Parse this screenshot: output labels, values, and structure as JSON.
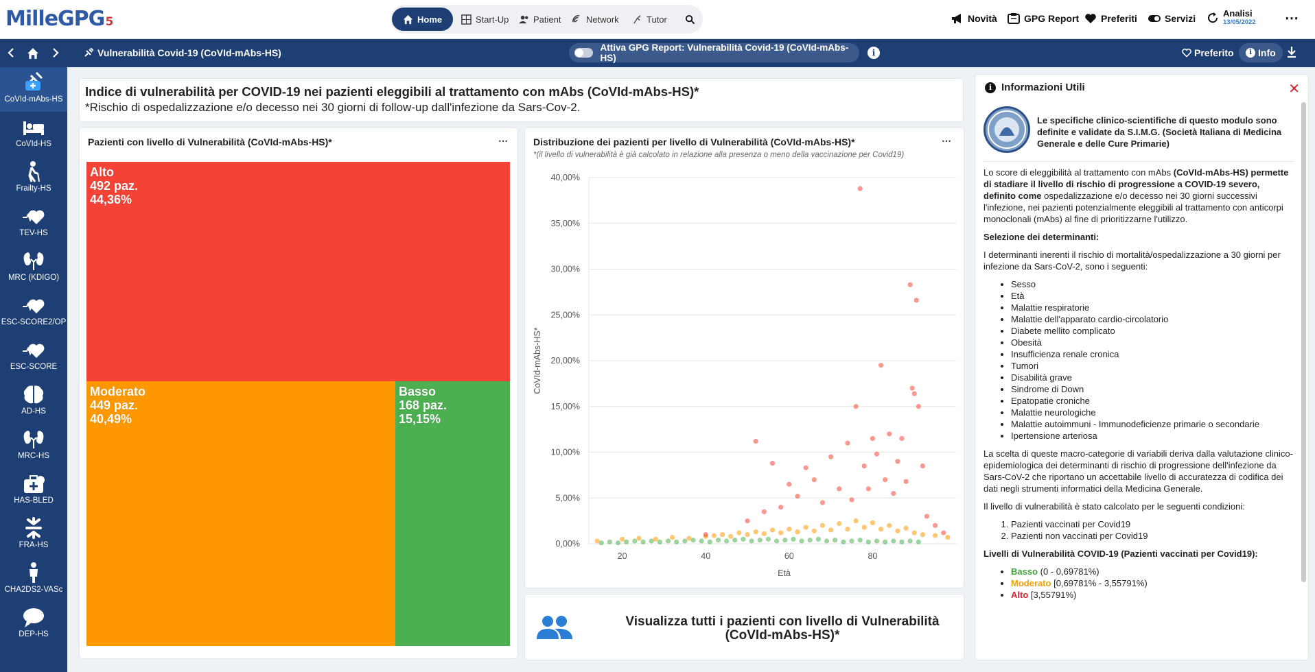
{
  "app": {
    "logo_text": "MilleGPG",
    "logo_num": "5"
  },
  "nav": {
    "items": [
      {
        "label": "Home",
        "icon": "home-icon",
        "active": true
      },
      {
        "label": "Start-Up",
        "icon": "grid-icon"
      },
      {
        "label": "Patient",
        "icon": "users-icon"
      },
      {
        "label": "Network",
        "icon": "network-icon"
      },
      {
        "label": "Tutor",
        "icon": "tutor-icon"
      }
    ]
  },
  "topright": {
    "novita": "Novità",
    "gpg_report": "GPG Report",
    "preferiti": "Preferiti",
    "servizi": "Servizi",
    "analisi": "Analisi",
    "analisi_date": "13/05/2022"
  },
  "subbar": {
    "title": "Vulnerabilità Covid-19 (CoVId-mAbs-HS)",
    "toggle_label": "Attiva GPG Report: Vulnerabilità Covid-19 (CoVId-mAbs-HS)",
    "preferito": "Preferito",
    "info": "Info"
  },
  "sidebar": [
    {
      "label": "CoVId-mAbs-HS",
      "icon": "vaccine-icon",
      "active": true
    },
    {
      "label": "CoVId-HS",
      "icon": "bed-icon"
    },
    {
      "label": "Frailty-HS",
      "icon": "elderly-icon"
    },
    {
      "label": "TEV-HS",
      "icon": "heart-pulse-icon"
    },
    {
      "label": "MRC (KDIGO)",
      "icon": "kidney-icon"
    },
    {
      "label": "ESC-SCORE2/OP",
      "icon": "heart-pulse-icon"
    },
    {
      "label": "ESC-SCORE",
      "icon": "heart-pulse-icon"
    },
    {
      "label": "AD-HS",
      "icon": "brain-icon"
    },
    {
      "label": "MRC-HS",
      "icon": "kidney-icon"
    },
    {
      "label": "HAS-BLED",
      "icon": "medical-kit-icon"
    },
    {
      "label": "FRA-HS",
      "icon": "fracture-icon"
    },
    {
      "label": "CHA2DS2-VASc",
      "icon": "person-icon"
    },
    {
      "label": "DEP-HS",
      "icon": "speech-icon"
    }
  ],
  "header": {
    "title": "Indice di vulnerabilità per COVID-19 nei pazienti eleggibili al trattamento con mAbs (CoVId-mAbs-HS)*",
    "subtitle": "*Rischio di ospedalizzazione e/o decesso nei 30 giorni di follow-up dall'infezione da Sars-Cov-2."
  },
  "treemap": {
    "title": "Pazienti con livello di Vulnerabilità (CoVId-mAbs-HS)*",
    "cells": [
      {
        "name": "Alto",
        "count": "492 paz.",
        "pct": "44,36%",
        "color": "#f44336"
      },
      {
        "name": "Moderato",
        "count": "449 paz.",
        "pct": "40,49%",
        "color": "#ff9800"
      },
      {
        "name": "Basso",
        "count": "168 paz.",
        "pct": "15,15%",
        "color": "#4caf50"
      }
    ]
  },
  "scatter": {
    "title": "Distribuzione dei pazienti per livello di Vulnerabilità (CoVId-mAbs-HS)*",
    "subtitle": "*(il livello di vulnerabilità è già calcolato in relazione alla presenza o meno della vaccinazione per Covid19)"
  },
  "chart_data": {
    "type": "scatter",
    "title": "Distribuzione dei pazienti per livello di Vulnerabilità (CoVId-mAbs-HS)*",
    "xlabel": "Età",
    "ylabel": "CoVId-mAbs-HS*",
    "xlim": [
      12,
      100
    ],
    "ylim": [
      0,
      40
    ],
    "x_ticks": [
      20,
      40,
      60,
      80
    ],
    "y_ticks": [
      "0,00%",
      "5,00%",
      "10,00%",
      "15,00%",
      "20,00%",
      "25,00%",
      "30,00%",
      "35,00%",
      "40,00%"
    ],
    "grid": true,
    "series": [
      {
        "name": "Basso",
        "color": "#4caf50",
        "points": [
          [
            15,
            0.1
          ],
          [
            17,
            0.2
          ],
          [
            19,
            0.1
          ],
          [
            21,
            0.2
          ],
          [
            23,
            0.3
          ],
          [
            25,
            0.2
          ],
          [
            27,
            0.3
          ],
          [
            29,
            0.2
          ],
          [
            31,
            0.3
          ],
          [
            33,
            0.2
          ],
          [
            35,
            0.3
          ],
          [
            37,
            0.4
          ],
          [
            39,
            0.3
          ],
          [
            41,
            0.2
          ],
          [
            43,
            0.4
          ],
          [
            45,
            0.3
          ],
          [
            47,
            0.4
          ],
          [
            49,
            0.5
          ],
          [
            51,
            0.3
          ],
          [
            53,
            0.4
          ],
          [
            55,
            0.5
          ],
          [
            57,
            0.3
          ],
          [
            59,
            0.4
          ],
          [
            61,
            0.5
          ],
          [
            63,
            0.3
          ],
          [
            65,
            0.4
          ],
          [
            67,
            0.5
          ],
          [
            69,
            0.3
          ],
          [
            71,
            0.4
          ],
          [
            73,
            0.2
          ],
          [
            75,
            0.3
          ],
          [
            77,
            0.4
          ],
          [
            79,
            0.2
          ],
          [
            81,
            0.3
          ],
          [
            83,
            0.2
          ],
          [
            85,
            0.3
          ],
          [
            87,
            0.2
          ],
          [
            89,
            0.3
          ],
          [
            91,
            0.2
          ]
        ]
      },
      {
        "name": "Moderato",
        "color": "#ff9800",
        "points": [
          [
            14,
            0.3
          ],
          [
            20,
            0.5
          ],
          [
            24,
            0.6
          ],
          [
            28,
            0.5
          ],
          [
            32,
            0.7
          ],
          [
            36,
            0.6
          ],
          [
            40,
            0.8
          ],
          [
            42,
            0.9
          ],
          [
            44,
            1.0
          ],
          [
            46,
            0.8
          ],
          [
            48,
            1.2
          ],
          [
            50,
            1.0
          ],
          [
            52,
            1.3
          ],
          [
            54,
            1.1
          ],
          [
            56,
            1.5
          ],
          [
            58,
            1.2
          ],
          [
            60,
            1.6
          ],
          [
            62,
            1.3
          ],
          [
            64,
            1.8
          ],
          [
            66,
            1.4
          ],
          [
            68,
            2.0
          ],
          [
            70,
            1.5
          ],
          [
            72,
            2.2
          ],
          [
            74,
            1.6
          ],
          [
            76,
            2.5
          ],
          [
            78,
            1.8
          ],
          [
            80,
            2.3
          ],
          [
            82,
            1.6
          ],
          [
            84,
            2.0
          ],
          [
            86,
            1.4
          ],
          [
            88,
            1.7
          ],
          [
            90,
            1.2
          ],
          [
            92,
            1.0
          ],
          [
            95,
            0.9
          ],
          [
            98,
            0.7
          ]
        ]
      },
      {
        "name": "Alto",
        "color": "#f44336",
        "points": [
          [
            40,
            1.0
          ],
          [
            50,
            2.5
          ],
          [
            52,
            11.2
          ],
          [
            54,
            3.5
          ],
          [
            56,
            8.8
          ],
          [
            58,
            4.0
          ],
          [
            60,
            6.5
          ],
          [
            62,
            5.2
          ],
          [
            64,
            8.3
          ],
          [
            66,
            7.0
          ],
          [
            68,
            4.5
          ],
          [
            70,
            9.5
          ],
          [
            72,
            6.0
          ],
          [
            74,
            11.0
          ],
          [
            75,
            4.8
          ],
          [
            76,
            15.0
          ],
          [
            77,
            38.8
          ],
          [
            78,
            8.5
          ],
          [
            79,
            6.0
          ],
          [
            80,
            11.5
          ],
          [
            81,
            9.8
          ],
          [
            82,
            19.5
          ],
          [
            83,
            7.0
          ],
          [
            84,
            12.0
          ],
          [
            85,
            5.5
          ],
          [
            86,
            9.0
          ],
          [
            87,
            11.5
          ],
          [
            88,
            6.8
          ],
          [
            89,
            28.3
          ],
          [
            89.5,
            17.0
          ],
          [
            90,
            16.4
          ],
          [
            90.5,
            26.6
          ],
          [
            91,
            15.0
          ],
          [
            92,
            8.5
          ],
          [
            93,
            3.0
          ],
          [
            95,
            2.0
          ],
          [
            97,
            1.2
          ]
        ]
      }
    ]
  },
  "cta": {
    "label": "Visualizza tutti i pazienti con livello di Vulnerabilità (CoVId-mAbs-HS)*"
  },
  "info_panel": {
    "title": "Informazioni Utili",
    "intro": "Le specifiche clinico-scientifiche di questo modulo sono definite e validate da S.I.M.G. (Società Italiana di Medicina Generale e delle Cure Primarie)",
    "p1_a": "Lo score di eleggibilità al trattamento con mAbs ",
    "p1_b": "(CoVId-mAbs-HS) permette di stadiare il livello di rischio di progressione a COVID-19 severo, definito come",
    "p1_c": " ospedalizzazione e/o decesso nei 30 giorni successivi l'infezione, nei pazienti potenzialmente eleggibili al trattamento con anticorpi monoclonali (mAbs) al fine di prioritizzarne l'utilizzo.",
    "sel_title": "Selezione dei determinanti:",
    "sel_text": "I determinanti inerenti il rischio di mortalità/ospedalizzazione a 30 giorni per infezione da Sars-CoV-2, sono i seguenti:",
    "determinants": [
      "Sesso",
      "Età",
      "Malattie respiratorie",
      "Malattie dell'apparato cardio-circolatorio",
      "Diabete mellito complicato",
      "Obesità",
      "Insufficienza renale cronica",
      "Tumori",
      "Disabilità grave",
      "Sindrome di Down",
      "Epatopatie croniche",
      "Malattie neurologiche",
      "Malattie autoimmuni - Immunodeficienze primarie o secondarie",
      "Ipertensione arteriosa"
    ],
    "p2": "La scelta di queste macro-categorie di variabili deriva dalla valutazione clinico-epidemiologica dei determinanti di rischio di progressione dell'infezione da Sars-CoV-2 che riportano un accettabile livello di accuratezza di codifica dei dati negli strumenti informatici della Medicina Generale.",
    "p3": "Il livello di vulnerabilità è stato calcolato per le seguenti condizioni:",
    "conditions": [
      "Pazienti vaccinati per Covid19",
      "Pazienti non vaccinati per Covid19"
    ],
    "levels_title": "Livelli di Vulnerabilità COVID-19 (Pazienti vaccinati per Covid19):",
    "levels": [
      {
        "name": "Basso",
        "range": " (0 - 0,69781%)"
      },
      {
        "name": "Moderato",
        "range": " [0,69781% - 3,55791%)"
      },
      {
        "name": "Alto",
        "range": " [3,55791%)"
      }
    ]
  }
}
